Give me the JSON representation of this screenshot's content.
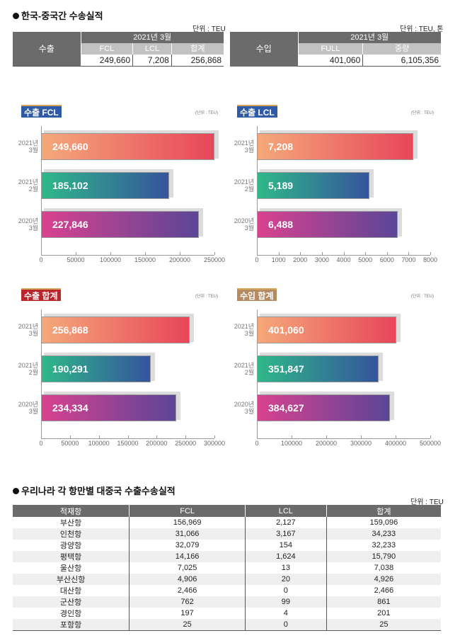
{
  "section1": {
    "title": "한국-중국간 수송실적",
    "export_table": {
      "unit": "단위 : TEU",
      "row_label": "수출",
      "period": "2021년 3월",
      "columns": [
        "FCL",
        "LCL",
        "합계"
      ],
      "values": [
        "249,660",
        "7,208",
        "256,868"
      ]
    },
    "import_table": {
      "unit": "단위 : TEU, 톤",
      "row_label": "수입",
      "period": "2021년 3월",
      "columns": [
        "FULL",
        "중량"
      ],
      "values": [
        "401,060",
        "6,105,356"
      ]
    }
  },
  "colors": {
    "bar1": [
      "#f4a97a",
      "#e8465a"
    ],
    "bar2": [
      "#2fb889",
      "#35549c"
    ],
    "bar3": [
      "#d9428f",
      "#5b4597"
    ]
  },
  "chart_data": [
    {
      "type": "bar",
      "orientation": "horizontal",
      "title": "수출 FCL",
      "unit": "(단위 : TEU)",
      "categories": [
        [
          "2021년",
          "3월"
        ],
        [
          "2021년",
          "2월"
        ],
        [
          "2020년",
          "3월"
        ]
      ],
      "values": [
        249660,
        185102,
        227846
      ],
      "labels": [
        "249,660",
        "185,102",
        "227,846"
      ],
      "xlim": [
        0,
        250000
      ],
      "ticks": [
        0,
        50000,
        100000,
        150000,
        200000,
        250000
      ]
    },
    {
      "type": "bar",
      "orientation": "horizontal",
      "title": "수출 LCL",
      "unit": "(단위 : TEU)",
      "categories": [
        [
          "2021년",
          "3월"
        ],
        [
          "2021년",
          "2월"
        ],
        [
          "2020년",
          "3월"
        ]
      ],
      "values": [
        7208,
        5189,
        6488
      ],
      "labels": [
        "7,208",
        "5,189",
        "6,488"
      ],
      "xlim": [
        0,
        8000
      ],
      "ticks": [
        0,
        1000,
        2000,
        3000,
        4000,
        5000,
        6000,
        7000,
        8000
      ]
    },
    {
      "type": "bar",
      "orientation": "horizontal",
      "title": "수출 합계",
      "unit": "(단위 : TEU)",
      "categories": [
        [
          "2021년",
          "3월"
        ],
        [
          "2021년",
          "2월"
        ],
        [
          "2020년",
          "3월"
        ]
      ],
      "values": [
        256868,
        190291,
        234334
      ],
      "labels": [
        "256,868",
        "190,291",
        "234,334"
      ],
      "xlim": [
        0,
        300000
      ],
      "ticks": [
        0,
        50000,
        100000,
        150000,
        200000,
        250000,
        300000
      ]
    },
    {
      "type": "bar",
      "orientation": "horizontal",
      "title": "수입 합계",
      "unit": "(단위 : TEU)",
      "categories": [
        [
          "2021년",
          "3월"
        ],
        [
          "2021년",
          "2월"
        ],
        [
          "2020년",
          "3월"
        ]
      ],
      "values": [
        401060,
        351847,
        384627
      ],
      "labels": [
        "401,060",
        "351,847",
        "384,627"
      ],
      "xlim": [
        0,
        500000
      ],
      "ticks": [
        0,
        100000,
        200000,
        300000,
        400000,
        500000
      ]
    }
  ],
  "section2": {
    "title": "우리나라 각 항만별 대중국 수출수송실적",
    "unit": "단위 : TEU",
    "headers": [
      "적재항",
      "FCL",
      "LCL",
      "합계"
    ],
    "rows": [
      [
        "부산항",
        "156,969",
        "2,127",
        "159,096"
      ],
      [
        "인천항",
        "31,066",
        "3,167",
        "34,233"
      ],
      [
        "광양항",
        "32,079",
        "154",
        "32,233"
      ],
      [
        "평택항",
        "14,166",
        "1,624",
        "15,790"
      ],
      [
        "울산항",
        "7,025",
        "13",
        "7,038"
      ],
      [
        "부산신항",
        "4,906",
        "20",
        "4,926"
      ],
      [
        "대산항",
        "2,466",
        "0",
        "2,466"
      ],
      [
        "군산항",
        "762",
        "99",
        "861"
      ],
      [
        "경인항",
        "197",
        "4",
        "201"
      ],
      [
        "포항항",
        "25",
        "0",
        "25"
      ]
    ]
  }
}
